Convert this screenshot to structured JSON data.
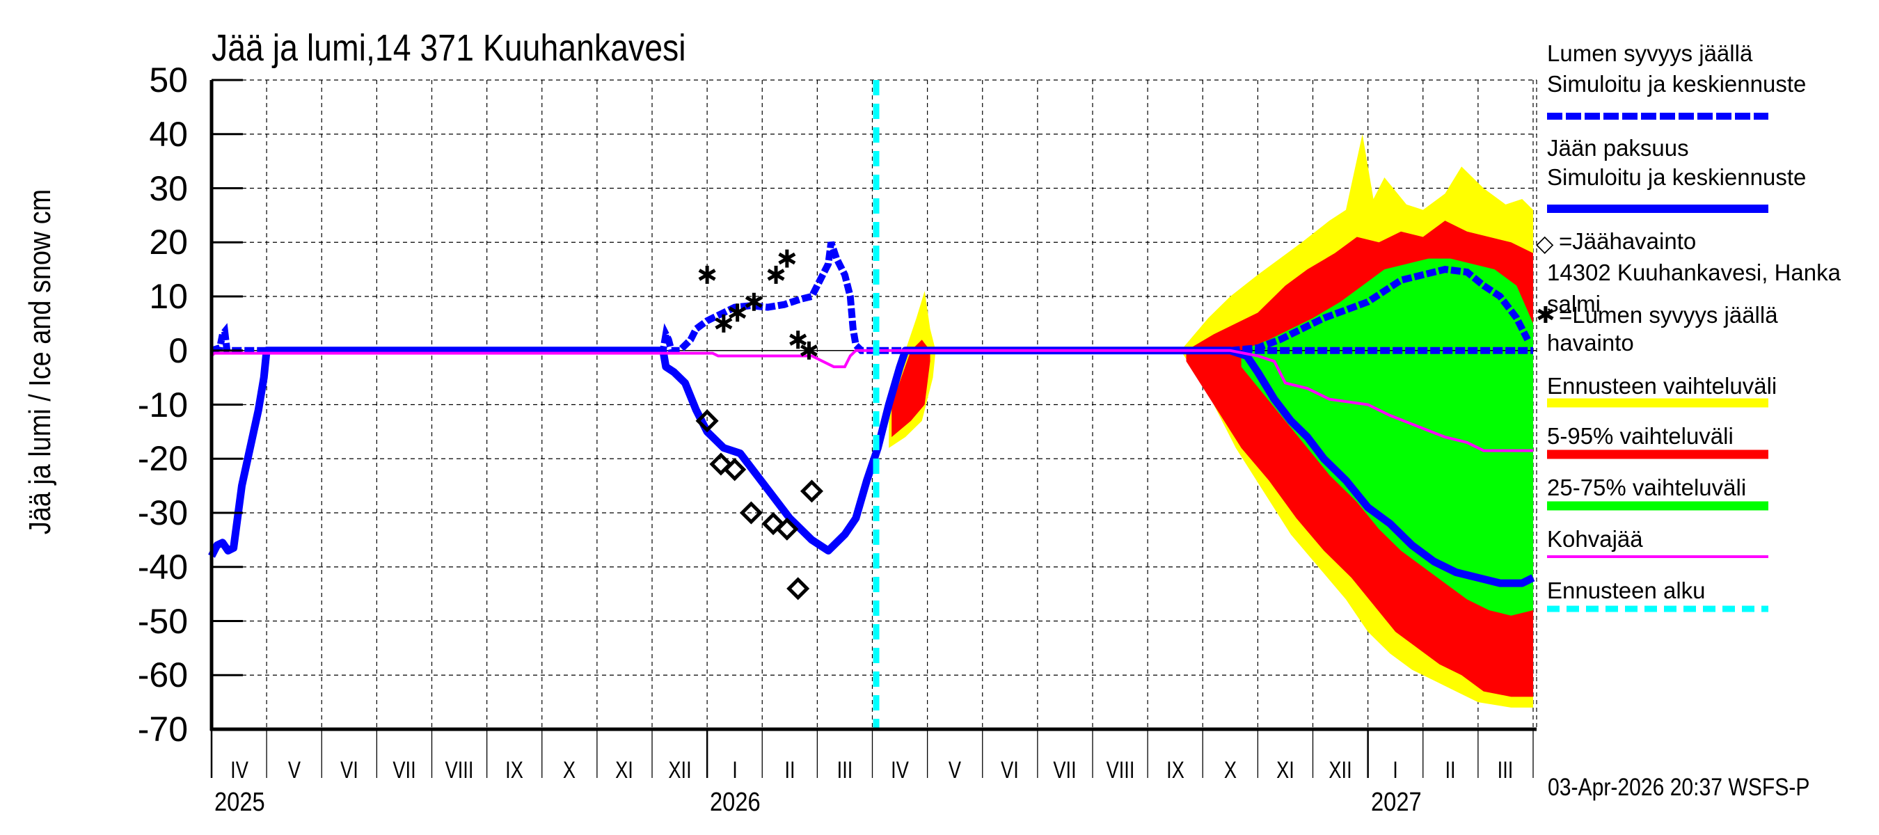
{
  "title": "Jää ja lumi,14 371 Kuuhankavesi",
  "y_axis_label": "Jää ja lumi / Ice and snow    cm",
  "timestamp": "03-Apr-2026 20:37 WSFS-P",
  "colors": {
    "snow_line": "#0000ff",
    "ice_line": "#0000ff",
    "range_full": "#ffff00",
    "range_5_95": "#ff0000",
    "range_25_75": "#00ff00",
    "slush_ice": "#ff00ff",
    "forecast_start": "#00ffff",
    "observation_marker": "#000000"
  },
  "legend": {
    "snow_title": "Lumen syvyys jäällä",
    "snow_sub": "Simuloitu ja keskiennuste",
    "ice_title": "Jään paksuus",
    "ice_sub": "Simuloitu ja keskiennuste",
    "ice_obs": "=Jäähavainto",
    "ice_obs_station_1": "14302 Kuuhankavesi, Hanka",
    "ice_obs_station_2": "salmi",
    "snow_obs": "=Lumen syvyys jäällä",
    "snow_obs_2": "havainto",
    "range_full": "Ennusteen vaihteluväli",
    "range_5_95": "5-95% vaihteluväli",
    "range_25_75": "25-75% vaihteluväli",
    "slush": "Kohvajää",
    "forecast_start": "Ennusteen alku"
  },
  "chart_data": {
    "type": "area",
    "title": "Jää ja lumi,14 371 Kuuhankavesi",
    "xlabel": "",
    "ylabel": "Jää ja lumi / Ice and snow cm",
    "ylim": [
      -70,
      50
    ],
    "yticks": [
      50,
      40,
      30,
      20,
      10,
      0,
      -10,
      -20,
      -30,
      -40,
      -50,
      -60,
      -70
    ],
    "x_unit": "months since 2025-04-01",
    "xlim": [
      0,
      24
    ],
    "months": [
      "IV",
      "V",
      "VI",
      "VII",
      "VIII",
      "IX",
      "X",
      "XI",
      "XII",
      "I",
      "II",
      "III",
      "IV",
      "V",
      "VI",
      "VII",
      "VIII",
      "IX",
      "X",
      "XI",
      "XII",
      "I",
      "II",
      "III"
    ],
    "years": [
      {
        "label": "2025",
        "x": 0
      },
      {
        "label": "2026",
        "x": 9
      },
      {
        "label": "2027",
        "x": 21
      }
    ],
    "grid": true,
    "legend_position": "right",
    "forecast_start_x": 12.07,
    "series": [
      {
        "name": "Lumen syvyys jäällä – Simuloitu ja keskiennuste",
        "style": "dashed",
        "points": [
          [
            0,
            0
          ],
          [
            0.15,
            0.5
          ],
          [
            0.2,
            3
          ],
          [
            0.24,
            3.5
          ],
          [
            0.28,
            0
          ],
          [
            0.3,
            0
          ],
          [
            8.2,
            0
          ],
          [
            8.25,
            3
          ],
          [
            8.3,
            2
          ],
          [
            8.35,
            0
          ],
          [
            8.5,
            0
          ],
          [
            8.7,
            2
          ],
          [
            8.8,
            4
          ],
          [
            9.0,
            5.5
          ],
          [
            9.3,
            7
          ],
          [
            9.5,
            8
          ],
          [
            9.8,
            8.3
          ],
          [
            10.1,
            8
          ],
          [
            10.4,
            8.5
          ],
          [
            10.7,
            9.5
          ],
          [
            10.9,
            10
          ],
          [
            11.0,
            12
          ],
          [
            11.1,
            14
          ],
          [
            11.2,
            16
          ],
          [
            11.25,
            20
          ],
          [
            11.35,
            17
          ],
          [
            11.5,
            14
          ],
          [
            11.6,
            10
          ],
          [
            11.65,
            4
          ],
          [
            11.7,
            1
          ],
          [
            11.8,
            0
          ],
          [
            24,
            0
          ],
          [
            18.5,
            0
          ],
          [
            19.0,
            0.5
          ],
          [
            19.4,
            2
          ],
          [
            19.8,
            4
          ],
          [
            20.2,
            6
          ],
          [
            20.6,
            7.5
          ],
          [
            21.0,
            9
          ],
          [
            21.3,
            11
          ],
          [
            21.6,
            13
          ],
          [
            22.0,
            14
          ],
          [
            22.4,
            15
          ],
          [
            22.8,
            14.5
          ],
          [
            23.1,
            12
          ],
          [
            23.4,
            10
          ],
          [
            23.7,
            6
          ],
          [
            23.9,
            2
          ]
        ]
      },
      {
        "name": "Jään paksuus – Simuloitu ja keskiennuste",
        "style": "solid",
        "points": [
          [
            0,
            -38
          ],
          [
            0.1,
            -36
          ],
          [
            0.2,
            -35.5
          ],
          [
            0.3,
            -37
          ],
          [
            0.4,
            -36.5
          ],
          [
            0.55,
            -25
          ],
          [
            0.7,
            -18
          ],
          [
            0.85,
            -11
          ],
          [
            0.95,
            -5
          ],
          [
            1.0,
            0
          ],
          [
            8.2,
            0
          ],
          [
            8.25,
            -3
          ],
          [
            8.4,
            -4
          ],
          [
            8.6,
            -6
          ],
          [
            8.8,
            -11
          ],
          [
            9.0,
            -15
          ],
          [
            9.3,
            -18
          ],
          [
            9.6,
            -19
          ],
          [
            9.9,
            -23
          ],
          [
            10.2,
            -27
          ],
          [
            10.5,
            -31
          ],
          [
            10.9,
            -35
          ],
          [
            11.2,
            -37
          ],
          [
            11.5,
            -34
          ],
          [
            11.7,
            -31
          ],
          [
            11.9,
            -24
          ],
          [
            12.1,
            -18
          ],
          [
            12.3,
            -10
          ],
          [
            12.5,
            -3
          ],
          [
            12.6,
            0
          ],
          [
            18.5,
            0
          ],
          [
            18.8,
            -1
          ],
          [
            19.0,
            -4
          ],
          [
            19.3,
            -9
          ],
          [
            19.6,
            -13
          ],
          [
            19.9,
            -16
          ],
          [
            20.2,
            -20
          ],
          [
            20.6,
            -24
          ],
          [
            21.0,
            -29
          ],
          [
            21.4,
            -32
          ],
          [
            21.8,
            -36
          ],
          [
            22.2,
            -39
          ],
          [
            22.6,
            -41
          ],
          [
            23.0,
            -42
          ],
          [
            23.4,
            -43
          ],
          [
            23.8,
            -43
          ],
          [
            24,
            -42
          ]
        ]
      },
      {
        "name": "Kohvajää",
        "style": "solid-thin",
        "points": [
          [
            0,
            -1
          ],
          [
            0.05,
            -0.5
          ],
          [
            9.1,
            -0.5
          ],
          [
            9.2,
            -1
          ],
          [
            10.9,
            -1
          ],
          [
            11.1,
            -2
          ],
          [
            11.3,
            -3
          ],
          [
            11.5,
            -3
          ],
          [
            11.6,
            -1
          ],
          [
            11.7,
            0
          ],
          [
            18.5,
            0
          ],
          [
            19.0,
            -1
          ],
          [
            19.3,
            -2
          ],
          [
            19.5,
            -6
          ],
          [
            19.9,
            -7
          ],
          [
            20.3,
            -9
          ],
          [
            21.0,
            -10
          ],
          [
            21.4,
            -12
          ],
          [
            21.9,
            -14
          ],
          [
            22.4,
            -16
          ],
          [
            22.8,
            -17
          ],
          [
            23.1,
            -18.5
          ],
          [
            24,
            -18.5
          ]
        ]
      }
    ],
    "ranges": {
      "range_full_upper": [
        [
          17.6,
          0
        ],
        [
          18.1,
          6
        ],
        [
          18.5,
          10
        ],
        [
          19.0,
          14
        ],
        [
          19.4,
          17
        ],
        [
          19.8,
          20
        ],
        [
          20.3,
          24
        ],
        [
          20.6,
          26
        ],
        [
          20.9,
          40
        ],
        [
          21.1,
          28
        ],
        [
          21.3,
          32
        ],
        [
          21.7,
          27
        ],
        [
          22.0,
          26
        ],
        [
          22.4,
          29
        ],
        [
          22.7,
          34
        ],
        [
          23.1,
          30
        ],
        [
          23.5,
          27
        ],
        [
          23.8,
          28
        ],
        [
          24,
          26
        ]
      ],
      "range_full_lower": [
        [
          17.6,
          0
        ],
        [
          18.1,
          -8
        ],
        [
          18.6,
          -18
        ],
        [
          19.1,
          -26
        ],
        [
          19.6,
          -34
        ],
        [
          20.1,
          -40
        ],
        [
          20.6,
          -46
        ],
        [
          21.0,
          -52
        ],
        [
          21.4,
          -56
        ],
        [
          21.8,
          -59
        ],
        [
          22.2,
          -61
        ],
        [
          22.6,
          -63
        ],
        [
          23.0,
          -65
        ],
        [
          23.6,
          -66
        ],
        [
          24,
          -66
        ]
      ],
      "p5_95_upper": [
        [
          17.7,
          0
        ],
        [
          18.2,
          3
        ],
        [
          18.6,
          5
        ],
        [
          19.0,
          7
        ],
        [
          19.5,
          12
        ],
        [
          19.9,
          15
        ],
        [
          20.4,
          18
        ],
        [
          20.8,
          21
        ],
        [
          21.2,
          20
        ],
        [
          21.6,
          22
        ],
        [
          22.0,
          21
        ],
        [
          22.4,
          24
        ],
        [
          22.8,
          22
        ],
        [
          23.2,
          21
        ],
        [
          23.6,
          20
        ],
        [
          24,
          18
        ]
      ],
      "p5_95_lower": [
        [
          17.7,
          -2
        ],
        [
          18.2,
          -10
        ],
        [
          18.7,
          -18
        ],
        [
          19.2,
          -24
        ],
        [
          19.7,
          -31
        ],
        [
          20.2,
          -37
        ],
        [
          20.7,
          -42
        ],
        [
          21.1,
          -47
        ],
        [
          21.5,
          -52
        ],
        [
          21.9,
          -55
        ],
        [
          22.3,
          -58
        ],
        [
          22.7,
          -60
        ],
        [
          23.1,
          -63
        ],
        [
          23.6,
          -64
        ],
        [
          24,
          -64
        ]
      ],
      "p25_75_upper": [
        [
          18.7,
          0
        ],
        [
          19.2,
          2
        ],
        [
          19.6,
          4
        ],
        [
          20.0,
          6
        ],
        [
          20.5,
          9
        ],
        [
          20.9,
          12
        ],
        [
          21.3,
          15
        ],
        [
          21.7,
          16
        ],
        [
          22.1,
          17
        ],
        [
          22.5,
          17
        ],
        [
          22.9,
          16
        ],
        [
          23.3,
          15
        ],
        [
          23.7,
          12
        ],
        [
          24,
          5
        ]
      ],
      "p25_75_lower": [
        [
          18.7,
          -3
        ],
        [
          19.1,
          -8
        ],
        [
          19.5,
          -13
        ],
        [
          19.9,
          -18
        ],
        [
          20.3,
          -23
        ],
        [
          20.8,
          -28
        ],
        [
          21.2,
          -33
        ],
        [
          21.6,
          -37
        ],
        [
          22.0,
          -40
        ],
        [
          22.4,
          -43
        ],
        [
          22.8,
          -46
        ],
        [
          23.2,
          -48
        ],
        [
          23.6,
          -49
        ],
        [
          24,
          -48
        ]
      ],
      "melt2026_full_upper": [
        [
          12.3,
          -12
        ],
        [
          12.6,
          0
        ],
        [
          12.8,
          6
        ],
        [
          12.95,
          11
        ],
        [
          13.05,
          4
        ],
        [
          13.15,
          0
        ]
      ],
      "melt2026_full_lower": [
        [
          12.3,
          -18
        ],
        [
          12.6,
          -16
        ],
        [
          12.9,
          -13
        ],
        [
          13.1,
          -5
        ],
        [
          13.15,
          0
        ]
      ],
      "melt2026_p5_95_upper": [
        [
          12.35,
          -10
        ],
        [
          12.7,
          0
        ],
        [
          12.9,
          2
        ],
        [
          13.05,
          0
        ]
      ],
      "melt2026_p5_95_lower": [
        [
          12.35,
          -16
        ],
        [
          12.7,
          -13
        ],
        [
          12.95,
          -10
        ],
        [
          13.05,
          -2
        ]
      ]
    },
    "observations": {
      "ice_thickness": [
        [
          9.0,
          -13
        ],
        [
          9.25,
          -21
        ],
        [
          9.5,
          -22
        ],
        [
          9.8,
          -30
        ],
        [
          10.2,
          -32
        ],
        [
          10.45,
          -33
        ],
        [
          10.65,
          -44
        ],
        [
          10.9,
          -26
        ]
      ],
      "snow_depth": [
        [
          9.0,
          14
        ],
        [
          9.3,
          5
        ],
        [
          9.55,
          7
        ],
        [
          9.85,
          9
        ],
        [
          10.25,
          14
        ],
        [
          10.45,
          17
        ],
        [
          10.65,
          2
        ],
        [
          10.85,
          0
        ]
      ]
    }
  }
}
